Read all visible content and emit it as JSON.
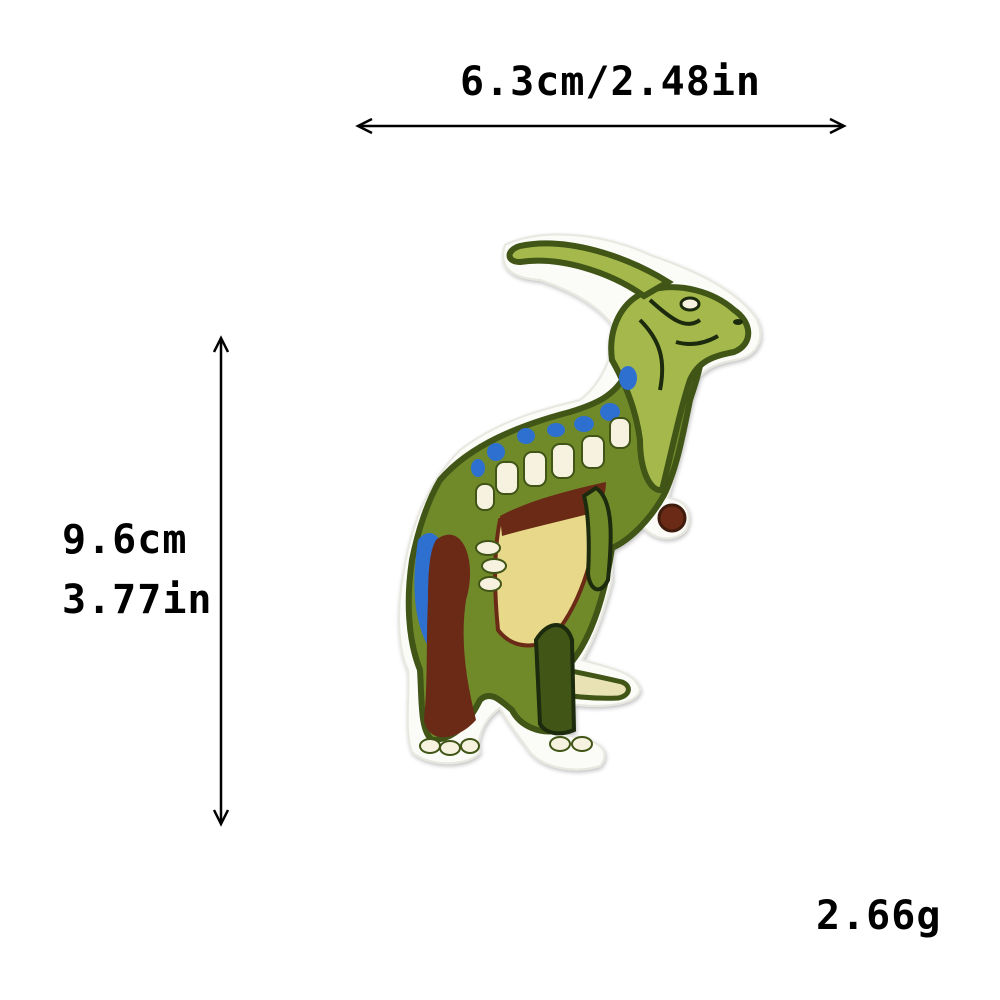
{
  "dimensions": {
    "width_label": "6.3cm/2.48in",
    "height_cm": "9.6cm",
    "height_in": "3.77in"
  },
  "weight_label": "2.66g",
  "product": {
    "icon": "parasaurolophus-patch-icon",
    "colors": {
      "olive": "#6f8a2a",
      "light_green": "#a4b84c",
      "dark_green": "#3f5418",
      "blue": "#2f6fd0",
      "brown": "#6a2a18",
      "cream": "#eee5b8",
      "yellow": "#e8d98a",
      "white": "#f7f2df"
    }
  }
}
